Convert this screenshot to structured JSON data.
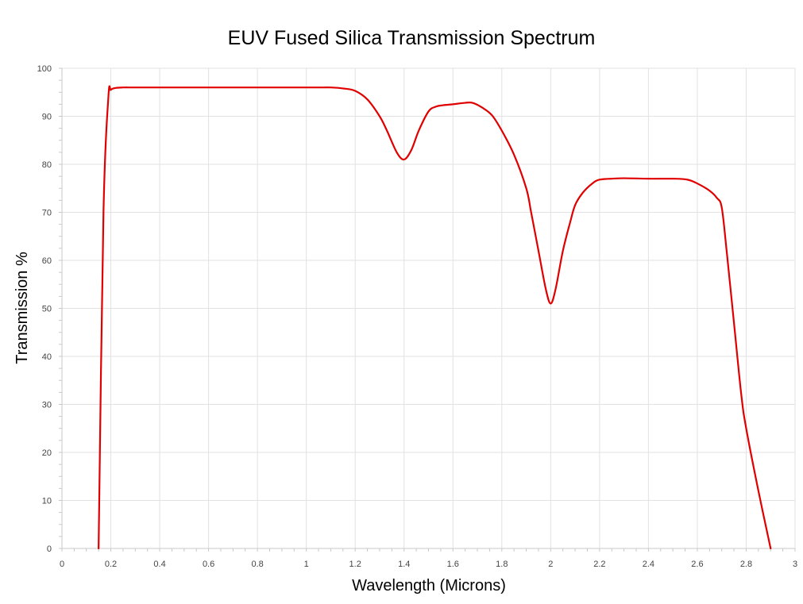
{
  "chart_data": {
    "type": "line",
    "title": "EUV Fused Silica Transmission Spectrum",
    "xlabel": "Wavelength (Microns)",
    "ylabel": "Transmission %",
    "xlim": [
      0,
      3
    ],
    "ylim": [
      0,
      100
    ],
    "x_ticks": [
      0,
      0.2,
      0.4,
      0.6,
      0.8,
      1,
      1.2,
      1.4,
      1.6,
      1.8,
      2,
      2.2,
      2.4,
      2.6,
      2.8,
      3
    ],
    "x_tick_labels": [
      "0",
      "0.2",
      "0.4",
      "0.6",
      "0.8",
      "1",
      "1.2",
      "1.4",
      "1.6",
      "1.8",
      "2",
      "2.2",
      "2.4",
      "2.6",
      "2.8",
      "3"
    ],
    "y_ticks": [
      0,
      10,
      20,
      30,
      40,
      50,
      60,
      70,
      80,
      90,
      100
    ],
    "y_tick_labels": [
      "0",
      "10",
      "20",
      "30",
      "40",
      "50",
      "60",
      "70",
      "80",
      "90",
      "100"
    ],
    "grid": true,
    "legend": "none",
    "series": [
      {
        "color": "#e00000",
        "x": [
          0.15,
          0.17,
          0.19,
          0.2,
          0.22,
          0.25,
          0.3,
          0.4,
          0.6,
          0.8,
          1.0,
          1.07,
          1.1,
          1.15,
          1.2,
          1.25,
          1.3,
          1.33,
          1.37,
          1.4,
          1.43,
          1.46,
          1.5,
          1.53,
          1.56,
          1.6,
          1.65,
          1.68,
          1.72,
          1.76,
          1.8,
          1.85,
          1.9,
          1.92,
          1.95,
          1.98,
          2.0,
          2.02,
          2.05,
          2.08,
          2.1,
          2.13,
          2.17,
          2.2,
          2.25,
          2.3,
          2.4,
          2.5,
          2.56,
          2.6,
          2.65,
          2.68,
          2.7,
          2.72,
          2.75,
          2.78,
          2.8,
          2.85,
          2.9
        ],
        "y": [
          0,
          70,
          94,
          95.5,
          95.9,
          96,
          96,
          96,
          96,
          96,
          96,
          96,
          96,
          95.8,
          95.3,
          93.5,
          90,
          87,
          82.5,
          81,
          83,
          87,
          91,
          92,
          92.3,
          92.5,
          92.8,
          92.8,
          91.8,
          90.2,
          87,
          82,
          75,
          70,
          62,
          54,
          51,
          54,
          62,
          68,
          71.5,
          74,
          76,
          76.8,
          77,
          77.1,
          77,
          77,
          76.8,
          76,
          74.5,
          73,
          71,
          62,
          47,
          32,
          25,
          12,
          0
        ]
      }
    ]
  }
}
